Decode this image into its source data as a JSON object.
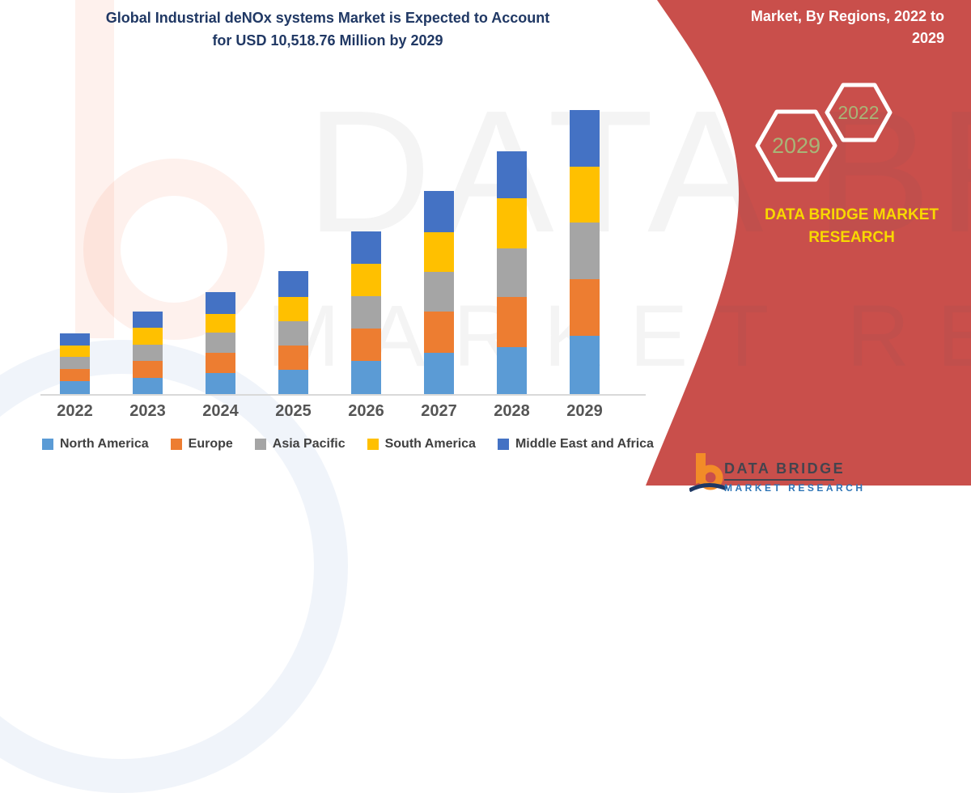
{
  "header": {
    "title_line1": "Global Industrial deNOx systems Market is Expected to Account",
    "title_line2": "for USD 10,518.76 Million by 2029",
    "title_color": "#203864"
  },
  "banner": {
    "heading_line1": "Market, By Regions, 2022 to",
    "heading_line2": "2029",
    "hexagon_front_year": "2029",
    "hexagon_back_year": "2022",
    "hexagon_year_color": "#A8B577",
    "brand_line1": "DATA BRIDGE MARKET",
    "brand_line2": "RESEARCH",
    "brand_text_color": "#F8D800",
    "background_color": "#C94F4B"
  },
  "watermark": {
    "line1": "DATA BRIDGE",
    "line2": "MARKET RESEARCH"
  },
  "footer_logo": {
    "name": "DATA BRIDGE",
    "subtitle": "MARKET RESEARCH",
    "icon_color": "#F28C28"
  },
  "chart_data": {
    "type": "bar",
    "stacked": true,
    "title": "Global Industrial deNOx systems Market is Expected to Account for USD 10,518.76 Million by 2029",
    "unit": "USD Million",
    "x": [
      "2022",
      "2023",
      "2024",
      "2025",
      "2026",
      "2027",
      "2028",
      "2029"
    ],
    "y_axis_visible": false,
    "grid": false,
    "legend_position": "bottom",
    "total_2029": 10518.76,
    "series": [
      {
        "name": "North America",
        "color": "#5B9BD5",
        "values": [
          470,
          600,
          780,
          910,
          1220,
          1520,
          1750,
          2150
        ]
      },
      {
        "name": "Europe",
        "color": "#ED7D31",
        "values": [
          470,
          620,
          740,
          900,
          1200,
          1530,
          1840,
          2100
        ]
      },
      {
        "name": "Asia Pacific",
        "color": "#A5A5A5",
        "values": [
          430,
          600,
          760,
          900,
          1200,
          1480,
          1810,
          2120
        ]
      },
      {
        "name": "South America",
        "color": "#FFC000",
        "values": [
          420,
          650,
          700,
          900,
          1210,
          1470,
          1850,
          2050
        ]
      },
      {
        "name": "Middle East and Africa",
        "color": "#4472C4",
        "values": [
          470,
          580,
          790,
          950,
          1200,
          1520,
          1750,
          2098.76
        ]
      }
    ]
  }
}
